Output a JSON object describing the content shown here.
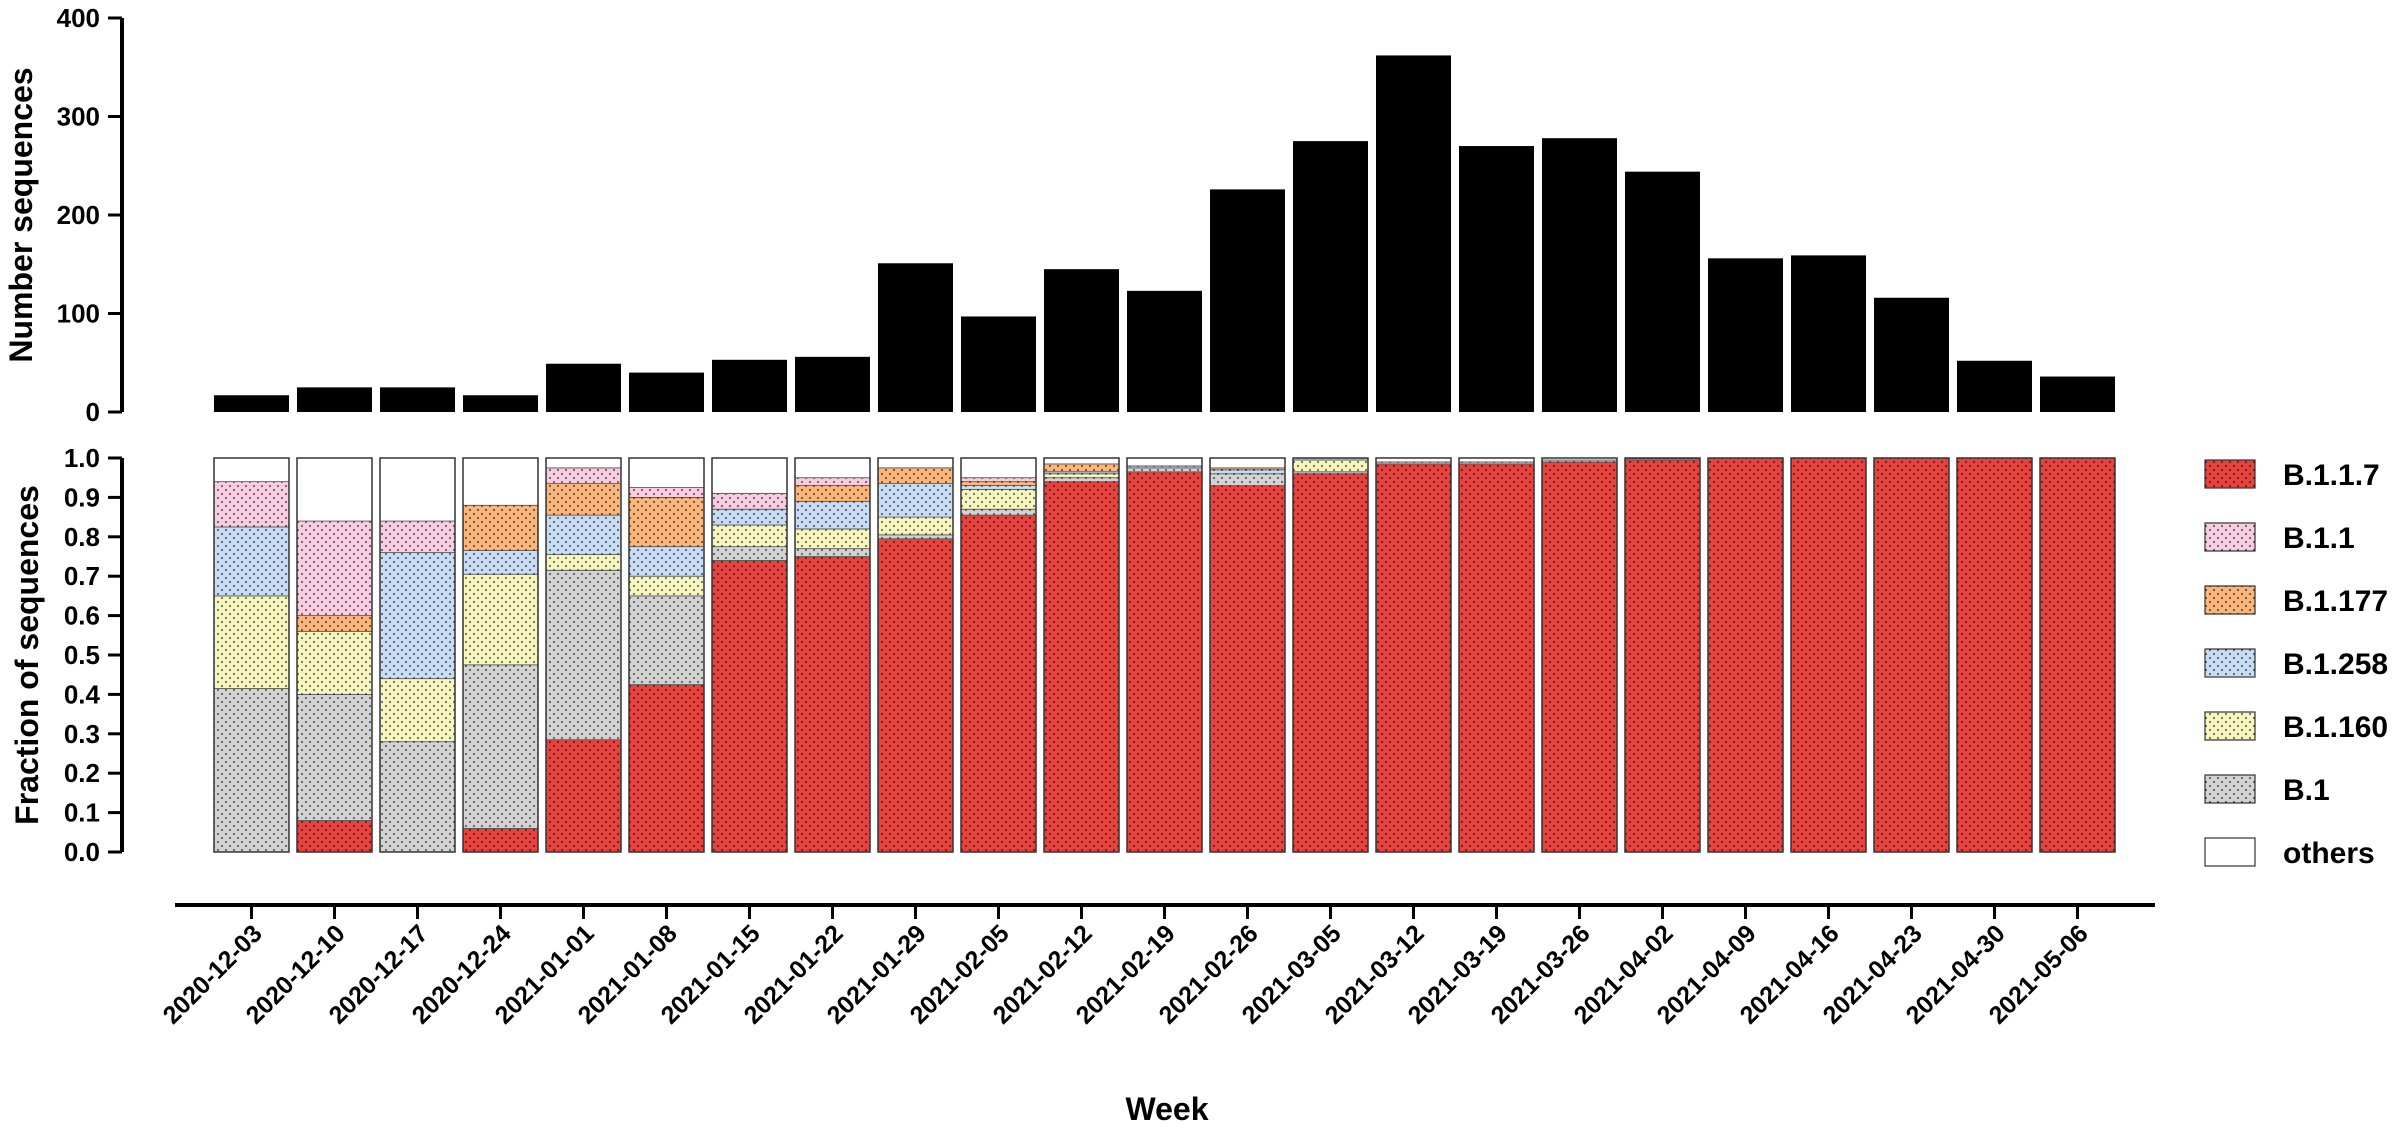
{
  "chart_data": [
    {
      "type": "bar",
      "ylabel": "Number sequences",
      "ylim": [
        0,
        400
      ],
      "yticks": [
        "0",
        "100",
        "200",
        "300",
        "400"
      ],
      "categories": [
        "2020-12-03",
        "2020-12-10",
        "2020-12-17",
        "2020-12-24",
        "2021-01-01",
        "2021-01-08",
        "2021-01-15",
        "2021-01-22",
        "2021-01-29",
        "2021-02-05",
        "2021-02-12",
        "2021-02-19",
        "2021-02-26",
        "2021-03-05",
        "2021-03-12",
        "2021-03-19",
        "2021-03-26",
        "2021-04-02",
        "2021-04-09",
        "2021-04-16",
        "2021-04-23",
        "2021-04-30",
        "2021-05-06"
      ],
      "values": [
        17,
        25,
        25,
        17,
        49,
        40,
        53,
        56,
        151,
        97,
        145,
        123,
        226,
        275,
        362,
        270,
        278,
        244,
        156,
        159,
        116,
        52,
        36
      ],
      "color": "#000000"
    },
    {
      "type": "bar",
      "stacked": true,
      "ylabel": "Fraction of sequences",
      "xlabel": "Week",
      "ylim": [
        0,
        1
      ],
      "yticks": [
        "0.0",
        "0.1",
        "0.2",
        "0.3",
        "0.4",
        "0.5",
        "0.6",
        "0.7",
        "0.8",
        "0.9",
        "1.0"
      ],
      "categories": [
        "2020-12-03",
        "2020-12-10",
        "2020-12-17",
        "2020-12-24",
        "2021-01-01",
        "2021-01-08",
        "2021-01-15",
        "2021-01-22",
        "2021-01-29",
        "2021-02-05",
        "2021-02-12",
        "2021-02-19",
        "2021-02-26",
        "2021-03-05",
        "2021-03-12",
        "2021-03-19",
        "2021-03-26",
        "2021-04-02",
        "2021-04-09",
        "2021-04-16",
        "2021-04-23",
        "2021-04-30",
        "2021-05-06"
      ],
      "series": [
        {
          "name": "B.1.1.7",
          "color": "#e8423f",
          "values": [
            0,
            0.08,
            0,
            0.06,
            0.285,
            0.425,
            0.74,
            0.75,
            0.795,
            0.855,
            0.94,
            0.965,
            0.93,
            0.96,
            0.985,
            0.985,
            0.99,
            0.995,
            1.0,
            1.0,
            1.0,
            1.0,
            1.0
          ]
        },
        {
          "name": "B.1",
          "color": "#d3d3d3",
          "values": [
            0.415,
            0.32,
            0.28,
            0.415,
            0.43,
            0.225,
            0.035,
            0.02,
            0.01,
            0.015,
            0.01,
            0.01,
            0.03,
            0.005,
            0.005,
            0.005,
            0.005,
            0.003,
            0,
            0,
            0,
            0,
            0
          ]
        },
        {
          "name": "B.1.160",
          "color": "#f8f6bf",
          "values": [
            0.235,
            0.16,
            0.16,
            0.23,
            0.04,
            0.05,
            0.055,
            0.05,
            0.045,
            0.05,
            0.01,
            0,
            0,
            0.03,
            0,
            0,
            0,
            0,
            0,
            0,
            0,
            0,
            0
          ]
        },
        {
          "name": "B.1.258",
          "color": "#c8dcf5",
          "values": [
            0.175,
            0,
            0.32,
            0.06,
            0.1,
            0.075,
            0.04,
            0.07,
            0.085,
            0.01,
            0.005,
            0.005,
            0.01,
            0.005,
            0,
            0,
            0,
            0,
            0,
            0,
            0,
            0,
            0
          ]
        },
        {
          "name": "B.1.177",
          "color": "#fbb67c",
          "values": [
            0,
            0.04,
            0,
            0.115,
            0.08,
            0.125,
            0,
            0.04,
            0.04,
            0.01,
            0.02,
            0,
            0.005,
            0,
            0,
            0,
            0,
            0,
            0,
            0,
            0,
            0,
            0
          ]
        },
        {
          "name": "B.1.1",
          "color": "#f9cde1",
          "values": [
            0.115,
            0.24,
            0.08,
            0,
            0.04,
            0.025,
            0.04,
            0.02,
            0,
            0.01,
            0,
            0,
            0,
            0,
            0,
            0,
            0,
            0,
            0,
            0,
            0,
            0,
            0
          ]
        },
        {
          "name": "others",
          "color": "#ffffff",
          "values": [
            0.06,
            0.16,
            0.16,
            0.12,
            0.025,
            0.075,
            0.09,
            0.05,
            0.025,
            0.05,
            0.015,
            0.02,
            0.025,
            0,
            0.01,
            0.01,
            0.005,
            0.002,
            0,
            0,
            0,
            0,
            0
          ]
        }
      ],
      "legend": {
        "position": "right",
        "order": [
          "B.1.1.7",
          "B.1.1",
          "B.1.177",
          "B.1.258",
          "B.1.160",
          "B.1",
          "others"
        ]
      },
      "pattern": "dotted-fill"
    }
  ]
}
